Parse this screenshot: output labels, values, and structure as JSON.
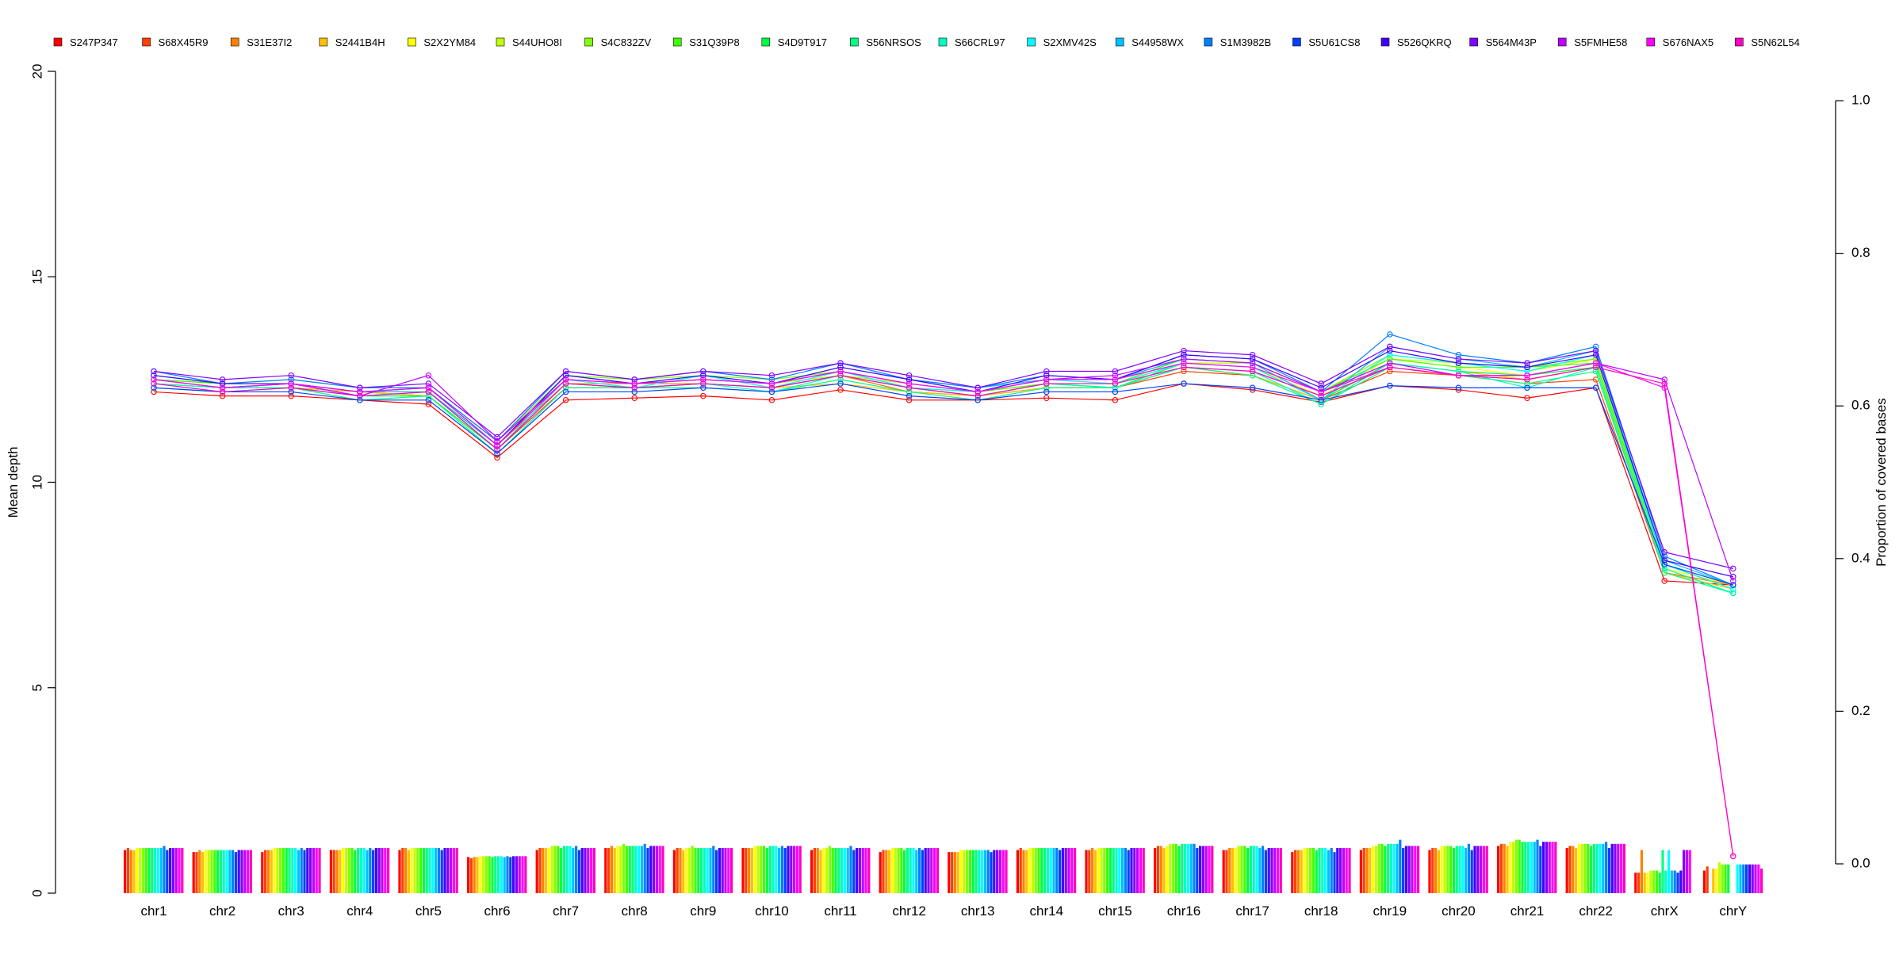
{
  "chart_data": {
    "type": "bar+line",
    "title": "",
    "xlabel": "",
    "ylabel_left": "Mean depth",
    "ylabel_right": "Proportion of covered bases",
    "ylim_left": [
      0,
      20
    ],
    "ylim_right": [
      0,
      1.0
    ],
    "yticks_left": [
      "0",
      "5",
      "10",
      "15",
      "20"
    ],
    "yticks_right": [
      "0.0",
      "0.2",
      "0.4",
      "0.6",
      "0.8",
      "1.0"
    ],
    "grid": false,
    "legend_position": "top",
    "categories": [
      "chr1",
      "chr2",
      "chr3",
      "chr4",
      "chr5",
      "chr6",
      "chr7",
      "chr8",
      "chr9",
      "chr10",
      "chr11",
      "chr12",
      "chr13",
      "chr14",
      "chr15",
      "chr16",
      "chr17",
      "chr18",
      "chr19",
      "chr20",
      "chr21",
      "chr22",
      "chrX",
      "chrY"
    ],
    "bar_axis": "left",
    "line_axis": "left",
    "series": [
      {
        "name": "S247P347",
        "color": "#FF0000",
        "bar": [
          1.05,
          1.0,
          1.0,
          1.05,
          1.05,
          0.88,
          1.05,
          1.1,
          1.05,
          1.1,
          1.05,
          1.0,
          1.0,
          1.05,
          1.05,
          1.1,
          1.05,
          1.0,
          1.05,
          1.05,
          1.15,
          1.1,
          0.5,
          0.55
        ],
        "line": [
          12.2,
          12.1,
          12.1,
          12.0,
          11.9,
          10.6,
          12.0,
          12.05,
          12.1,
          12.0,
          12.25,
          12.0,
          12.0,
          12.05,
          12.0,
          12.4,
          12.25,
          11.95,
          12.35,
          12.25,
          12.05,
          12.3,
          7.6,
          7.5
        ]
      },
      {
        "name": "S68X45R9",
        "color": "#FF4000",
        "bar": [
          1.1,
          1.0,
          1.05,
          1.05,
          1.1,
          0.85,
          1.1,
          1.1,
          1.1,
          1.1,
          1.1,
          1.05,
          1.0,
          1.1,
          1.05,
          1.15,
          1.05,
          1.05,
          1.1,
          1.1,
          1.2,
          1.15,
          0.5,
          0.65
        ],
        "line": [
          12.4,
          12.3,
          12.3,
          12.2,
          12.1,
          10.8,
          12.3,
          12.3,
          12.4,
          12.3,
          12.6,
          12.2,
          12.1,
          12.3,
          12.3,
          12.7,
          12.6,
          12.0,
          12.7,
          12.6,
          12.4,
          12.5,
          7.8,
          7.5
        ]
      },
      {
        "name": "S31E37I2",
        "color": "#FF8000",
        "bar": [
          1.05,
          1.05,
          1.05,
          1.05,
          1.1,
          0.88,
          1.1,
          1.15,
          1.1,
          1.1,
          1.1,
          1.05,
          1.0,
          1.05,
          1.1,
          1.15,
          1.1,
          1.05,
          1.1,
          1.1,
          1.2,
          1.15,
          1.05,
          0.0
        ],
        "line": [
          12.5,
          12.3,
          12.4,
          12.2,
          12.2,
          10.9,
          12.4,
          12.4,
          12.4,
          12.3,
          12.6,
          12.2,
          12.1,
          12.4,
          12.3,
          12.8,
          12.7,
          12.1,
          12.8,
          12.6,
          12.5,
          12.8,
          7.8,
          7.5
        ]
      },
      {
        "name": "S2441B4H",
        "color": "#FFC000",
        "bar": [
          1.05,
          1.0,
          1.05,
          1.05,
          1.05,
          0.88,
          1.1,
          1.1,
          1.05,
          1.1,
          1.05,
          1.05,
          1.0,
          1.05,
          1.05,
          1.1,
          1.1,
          1.05,
          1.1,
          1.05,
          1.15,
          1.1,
          0.5,
          0.6
        ],
        "line": [
          12.4,
          12.3,
          12.3,
          12.2,
          12.1,
          10.8,
          12.4,
          12.3,
          12.4,
          12.3,
          12.4,
          12.2,
          12.1,
          12.3,
          12.3,
          12.8,
          12.6,
          12.0,
          12.9,
          12.7,
          12.5,
          12.8,
          7.8,
          7.4
        ]
      },
      {
        "name": "S2X2YM84",
        "color": "#FFFF00",
        "bar": [
          1.1,
          1.05,
          1.1,
          1.1,
          1.1,
          0.9,
          1.1,
          1.15,
          1.1,
          1.15,
          1.1,
          1.1,
          1.05,
          1.1,
          1.1,
          1.15,
          1.1,
          1.1,
          1.15,
          1.15,
          1.25,
          1.2,
          0.5,
          0.6
        ],
        "line": [
          12.5,
          12.4,
          12.4,
          12.2,
          12.2,
          10.9,
          12.5,
          12.4,
          12.5,
          12.4,
          12.7,
          12.3,
          12.2,
          12.4,
          12.4,
          12.9,
          12.8,
          12.1,
          13.0,
          12.8,
          12.6,
          12.9,
          7.9,
          7.5
        ]
      },
      {
        "name": "S44UHO8I",
        "color": "#C0FF00",
        "bar": [
          1.1,
          1.05,
          1.1,
          1.1,
          1.1,
          0.9,
          1.15,
          1.15,
          1.1,
          1.15,
          1.1,
          1.1,
          1.05,
          1.1,
          1.1,
          1.2,
          1.15,
          1.1,
          1.15,
          1.15,
          1.25,
          1.2,
          0.55,
          0.75
        ],
        "line": [
          12.5,
          12.4,
          12.4,
          12.2,
          12.3,
          10.9,
          12.5,
          12.4,
          12.5,
          12.4,
          12.6,
          12.4,
          12.2,
          12.5,
          12.4,
          12.9,
          12.9,
          12.2,
          13.0,
          12.9,
          12.7,
          13.0,
          8.0,
          7.4
        ]
      },
      {
        "name": "S4C832ZV",
        "color": "#80FF00",
        "bar": [
          1.1,
          1.05,
          1.1,
          1.1,
          1.1,
          0.9,
          1.15,
          1.2,
          1.15,
          1.15,
          1.15,
          1.1,
          1.05,
          1.1,
          1.1,
          1.2,
          1.15,
          1.1,
          1.2,
          1.15,
          1.3,
          1.2,
          0.55,
          0.7
        ],
        "line": [
          12.6,
          12.4,
          12.5,
          12.3,
          12.3,
          11.0,
          12.6,
          12.5,
          12.6,
          12.5,
          12.7,
          12.4,
          12.2,
          12.5,
          12.5,
          13.0,
          12.9,
          12.2,
          13.1,
          12.9,
          12.8,
          13.0,
          8.0,
          7.4
        ]
      },
      {
        "name": "S31Q39P8",
        "color": "#40FF00",
        "bar": [
          1.1,
          1.05,
          1.1,
          1.1,
          1.1,
          0.9,
          1.15,
          1.15,
          1.1,
          1.15,
          1.1,
          1.1,
          1.05,
          1.1,
          1.1,
          1.2,
          1.15,
          1.1,
          1.2,
          1.15,
          1.3,
          1.2,
          0.55,
          0.7
        ],
        "line": [
          12.5,
          12.4,
          12.4,
          12.2,
          12.2,
          10.9,
          12.5,
          12.4,
          12.5,
          12.4,
          12.7,
          12.3,
          12.2,
          12.4,
          12.4,
          13.0,
          12.9,
          12.2,
          13.0,
          12.8,
          12.8,
          12.9,
          8.0,
          7.4
        ]
      },
      {
        "name": "S4D9T917",
        "color": "#00FF40",
        "bar": [
          1.1,
          1.05,
          1.1,
          1.05,
          1.1,
          0.88,
          1.1,
          1.15,
          1.1,
          1.1,
          1.1,
          1.05,
          1.05,
          1.1,
          1.1,
          1.15,
          1.1,
          1.05,
          1.15,
          1.1,
          1.25,
          1.15,
          0.5,
          0.7
        ],
        "line": [
          12.4,
          12.3,
          12.3,
          12.1,
          12.1,
          10.8,
          12.4,
          12.3,
          12.4,
          12.3,
          12.6,
          12.3,
          12.1,
          12.4,
          12.3,
          12.9,
          12.8,
          12.0,
          12.9,
          12.7,
          12.6,
          12.8,
          7.9,
          7.3
        ]
      },
      {
        "name": "S56NRSOS",
        "color": "#00FF80",
        "bar": [
          1.1,
          1.05,
          1.1,
          1.1,
          1.1,
          0.9,
          1.15,
          1.15,
          1.1,
          1.15,
          1.1,
          1.1,
          1.05,
          1.1,
          1.1,
          1.2,
          1.15,
          1.1,
          1.2,
          1.15,
          1.25,
          1.2,
          1.05,
          0.0
        ],
        "line": [
          12.3,
          12.2,
          12.3,
          12.0,
          12.1,
          10.7,
          12.3,
          12.3,
          12.3,
          12.2,
          12.5,
          12.2,
          12.0,
          12.3,
          12.3,
          12.8,
          12.6,
          11.9,
          12.8,
          12.6,
          12.4,
          12.7,
          7.8,
          7.3
        ]
      },
      {
        "name": "S66CRL97",
        "color": "#00FFC0",
        "bar": [
          1.1,
          1.05,
          1.1,
          1.1,
          1.1,
          0.9,
          1.15,
          1.15,
          1.1,
          1.15,
          1.1,
          1.1,
          1.05,
          1.1,
          1.1,
          1.2,
          1.15,
          1.1,
          1.2,
          1.15,
          1.25,
          1.2,
          0.55,
          0.0
        ],
        "line": [
          12.4,
          12.3,
          12.3,
          12.1,
          12.2,
          10.8,
          12.4,
          12.3,
          12.4,
          12.2,
          12.6,
          12.3,
          12.1,
          12.4,
          12.3,
          12.8,
          12.7,
          11.9,
          12.9,
          12.7,
          12.3,
          12.8,
          7.9,
          7.3
        ]
      },
      {
        "name": "S2XMV42S",
        "color": "#00FFFF",
        "bar": [
          1.1,
          1.05,
          1.1,
          1.1,
          1.1,
          0.9,
          1.15,
          1.15,
          1.1,
          1.15,
          1.1,
          1.1,
          1.05,
          1.1,
          1.1,
          1.2,
          1.15,
          1.1,
          1.2,
          1.15,
          1.25,
          1.2,
          1.05,
          0.7
        ],
        "line": [
          12.5,
          12.3,
          12.4,
          12.1,
          12.2,
          10.8,
          12.5,
          12.3,
          12.6,
          12.3,
          12.7,
          12.3,
          12.2,
          12.5,
          12.4,
          12.9,
          12.8,
          12.0,
          13.1,
          12.9,
          12.7,
          13.1,
          8.0,
          7.4
        ]
      },
      {
        "name": "S44958WX",
        "color": "#00C0FF",
        "bar": [
          1.1,
          1.05,
          1.05,
          1.05,
          1.1,
          0.88,
          1.1,
          1.15,
          1.1,
          1.1,
          1.1,
          1.05,
          1.05,
          1.1,
          1.1,
          1.2,
          1.1,
          1.05,
          1.2,
          1.1,
          1.25,
          1.2,
          0.55,
          0.7
        ],
        "line": [
          12.6,
          12.4,
          12.4,
          12.2,
          12.2,
          10.9,
          12.6,
          12.4,
          12.6,
          12.4,
          12.8,
          12.5,
          12.3,
          12.5,
          12.5,
          13.0,
          12.9,
          12.0,
          13.3,
          13.0,
          12.8,
          13.2,
          8.1,
          7.5
        ]
      },
      {
        "name": "S1M3982B",
        "color": "#0080FF",
        "bar": [
          1.15,
          1.05,
          1.1,
          1.1,
          1.1,
          0.9,
          1.15,
          1.2,
          1.15,
          1.15,
          1.15,
          1.1,
          1.05,
          1.1,
          1.1,
          1.2,
          1.15,
          1.1,
          1.3,
          1.2,
          1.3,
          1.25,
          0.55,
          0.7
        ],
        "line": [
          12.7,
          12.4,
          12.5,
          12.3,
          12.3,
          11.0,
          12.7,
          12.5,
          12.7,
          12.5,
          12.9,
          12.5,
          12.3,
          12.6,
          12.5,
          13.1,
          13.0,
          12.2,
          13.6,
          13.1,
          12.9,
          13.3,
          8.2,
          7.5
        ]
      },
      {
        "name": "S5U61CS8",
        "color": "#0040FF",
        "bar": [
          1.05,
          1.0,
          1.05,
          1.05,
          1.05,
          0.88,
          1.05,
          1.1,
          1.05,
          1.1,
          1.05,
          1.05,
          1.0,
          1.05,
          1.05,
          1.1,
          1.05,
          1.0,
          1.1,
          1.05,
          1.15,
          1.1,
          0.5,
          0.7
        ],
        "line": [
          12.3,
          12.2,
          12.2,
          12.0,
          12.0,
          10.7,
          12.2,
          12.2,
          12.3,
          12.2,
          12.4,
          12.1,
          12.0,
          12.2,
          12.2,
          12.4,
          12.3,
          12.0,
          12.35,
          12.3,
          12.3,
          12.3,
          8.0,
          7.5
        ]
      },
      {
        "name": "S526QKRQ",
        "color": "#4000FF",
        "bar": [
          1.1,
          1.05,
          1.1,
          1.1,
          1.1,
          0.9,
          1.1,
          1.15,
          1.1,
          1.15,
          1.1,
          1.1,
          1.05,
          1.1,
          1.1,
          1.15,
          1.1,
          1.1,
          1.15,
          1.15,
          1.25,
          1.2,
          0.55,
          0.7
        ],
        "line": [
          12.6,
          12.4,
          12.4,
          12.2,
          12.3,
          10.9,
          12.6,
          12.4,
          12.6,
          12.4,
          12.8,
          12.5,
          12.2,
          12.6,
          12.5,
          13.1,
          13.0,
          12.3,
          13.2,
          12.9,
          12.8,
          13.1,
          8.1,
          7.7
        ]
      },
      {
        "name": "S564M43P",
        "color": "#8000FF",
        "bar": [
          1.1,
          1.05,
          1.1,
          1.1,
          1.1,
          0.9,
          1.1,
          1.15,
          1.1,
          1.15,
          1.1,
          1.1,
          1.05,
          1.1,
          1.1,
          1.15,
          1.1,
          1.1,
          1.15,
          1.15,
          1.25,
          1.2,
          1.05,
          0.7
        ],
        "line": [
          12.7,
          12.5,
          12.6,
          12.3,
          12.4,
          11.1,
          12.7,
          12.5,
          12.7,
          12.6,
          12.9,
          12.6,
          12.3,
          12.7,
          12.7,
          13.2,
          13.1,
          12.4,
          13.3,
          13.0,
          12.9,
          13.2,
          8.3,
          7.9
        ]
      },
      {
        "name": "S5FMHE58",
        "color": "#C000FF",
        "bar": [
          1.1,
          1.05,
          1.1,
          1.1,
          1.1,
          0.9,
          1.1,
          1.15,
          1.1,
          1.15,
          1.1,
          1.1,
          1.05,
          1.1,
          1.1,
          1.15,
          1.1,
          1.1,
          1.15,
          1.15,
          1.25,
          1.2,
          1.05,
          0.7
        ],
        "line": [
          12.5,
          12.3,
          12.4,
          12.1,
          12.6,
          11.0,
          12.5,
          12.4,
          12.5,
          12.4,
          12.7,
          12.4,
          12.2,
          12.5,
          12.6,
          13.0,
          12.9,
          12.2,
          12.9,
          12.6,
          12.6,
          12.9,
          12.5,
          7.6
        ]
      },
      {
        "name": "S676NAX5",
        "color": "#FF00FF",
        "bar": [
          1.1,
          1.05,
          1.1,
          1.1,
          1.1,
          0.9,
          1.1,
          1.15,
          1.1,
          1.15,
          1.1,
          1.1,
          1.05,
          1.1,
          1.1,
          1.15,
          1.1,
          1.1,
          1.15,
          1.15,
          1.25,
          1.2,
          1.05,
          0.7
        ],
        "line": [
          12.5,
          12.3,
          12.4,
          12.2,
          12.3,
          10.9,
          12.5,
          12.4,
          12.5,
          12.4,
          12.7,
          12.4,
          12.2,
          12.5,
          12.5,
          12.9,
          12.8,
          12.2,
          12.8,
          12.6,
          12.6,
          12.9,
          12.3,
          0.9
        ]
      },
      {
        "name": "S5N62L54",
        "color": "#FF00C0",
        "bar": [
          1.1,
          1.05,
          1.1,
          1.1,
          1.1,
          0.9,
          1.1,
          1.15,
          1.1,
          1.15,
          1.1,
          1.1,
          1.05,
          1.1,
          1.1,
          1.15,
          1.1,
          1.1,
          1.15,
          1.15,
          1.25,
          1.2,
          0.0,
          0.6
        ],
        "line": [
          12.4,
          12.2,
          12.3,
          12.1,
          12.2,
          10.8,
          12.4,
          12.3,
          12.4,
          12.3,
          12.6,
          12.3,
          12.1,
          12.4,
          12.4,
          12.8,
          12.7,
          12.1,
          12.8,
          12.6,
          12.5,
          12.8,
          12.4,
          0.9
        ]
      }
    ]
  }
}
